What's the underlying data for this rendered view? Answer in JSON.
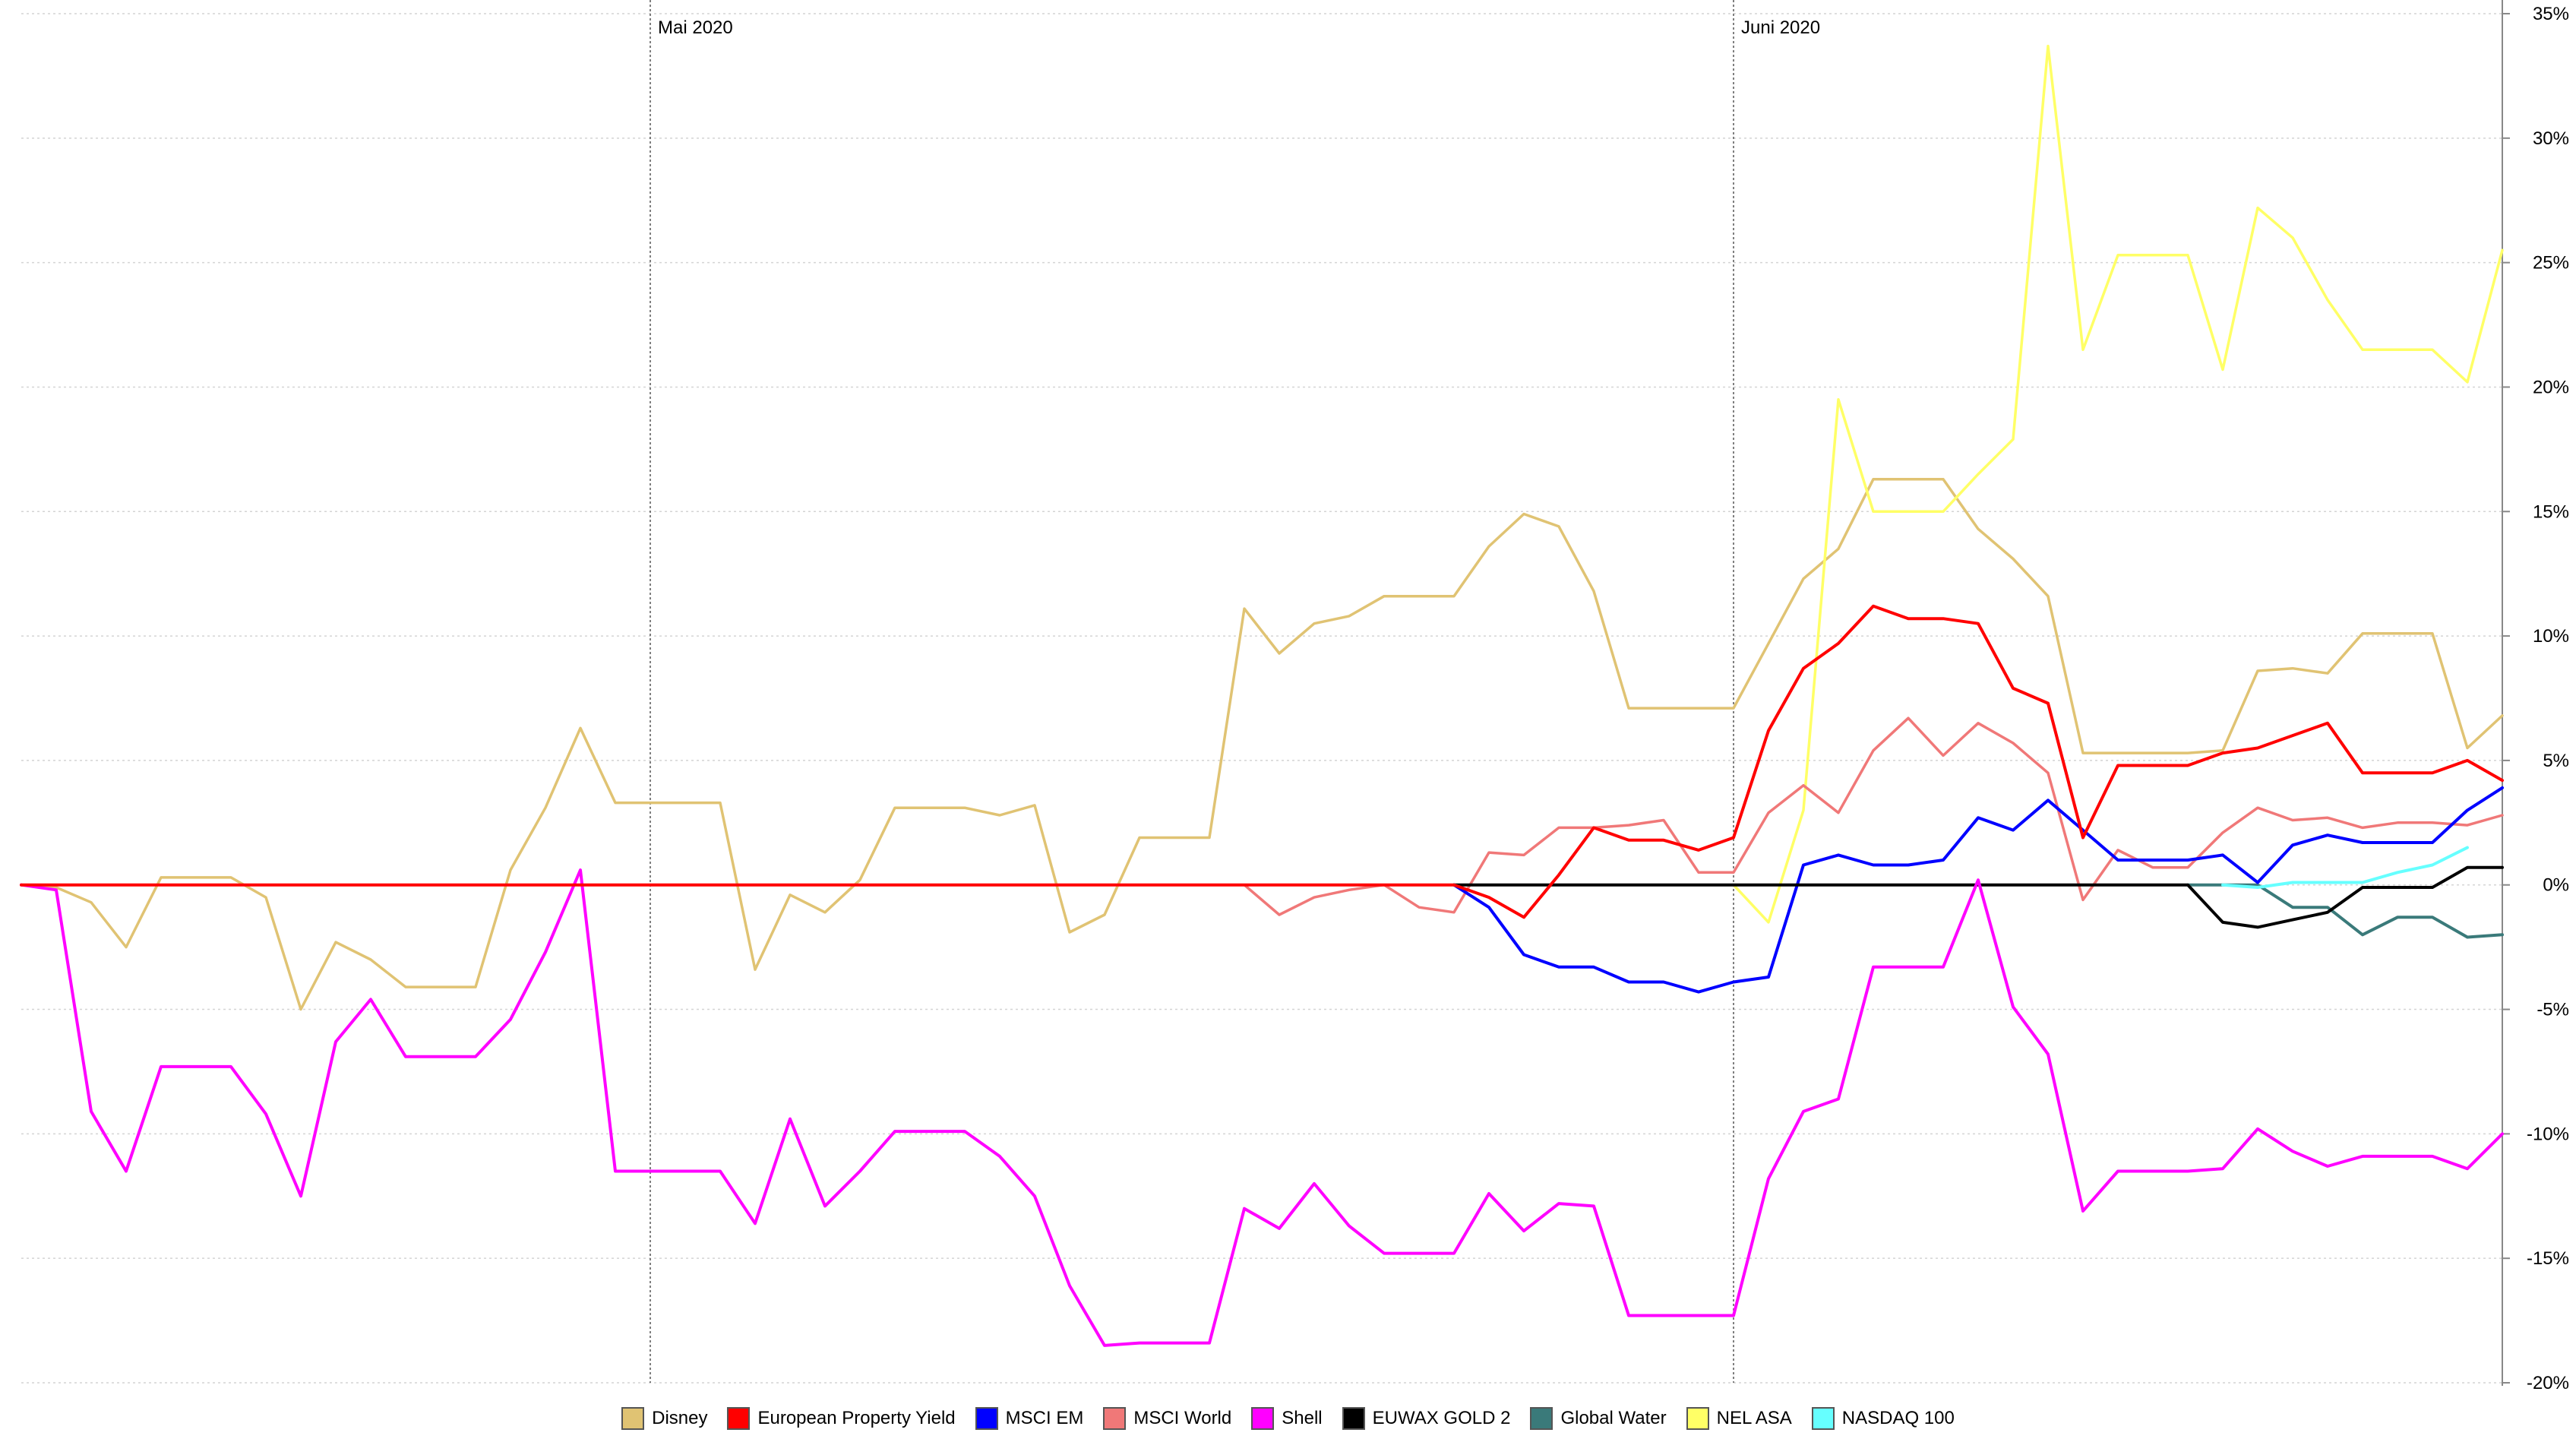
{
  "chart_data": {
    "type": "line",
    "ylim": [
      -20,
      35
    ],
    "y_ticks": [
      "35%",
      "30%",
      "25%",
      "20%",
      "15%",
      "10%",
      "5%",
      "0%",
      "-5%",
      "-10%",
      "-15%",
      "-20%"
    ],
    "y_tick_values": [
      35,
      30,
      25,
      20,
      15,
      10,
      5,
      0,
      -5,
      -10,
      -15,
      -20
    ],
    "y_axis_position": "right",
    "grid": true,
    "legend_position": "bottom",
    "x_count": 72,
    "month_markers": [
      {
        "label": "Mai 2020",
        "index": 18
      },
      {
        "label": "Juni 2020",
        "index": 49
      }
    ],
    "series": [
      {
        "name": "Disney",
        "color": "#e0c373",
        "start_index": 0,
        "values": [
          0,
          -0.1,
          -0.7,
          -2.5,
          0.3,
          0.3,
          0.3,
          -0.5,
          -5,
          -2.3,
          -3,
          -4.1,
          -4.1,
          -4.1,
          0.6,
          3.1,
          6.3,
          3.3,
          3.3,
          3.3,
          3.3,
          -3.4,
          -0.4,
          -1.1,
          0.2,
          3.1,
          3.1,
          3.1,
          2.8,
          3.2,
          -1.9,
          -1.2,
          1.9,
          1.9,
          1.9,
          11.1,
          9.3,
          10.5,
          10.8,
          11.6,
          11.6,
          11.6,
          13.6,
          14.9,
          14.4,
          11.8,
          7.1,
          7.1,
          7.1,
          7.1,
          9.7,
          12.3,
          13.5,
          16.3,
          16.3,
          16.3,
          14.3,
          13.1,
          11.6,
          5.3,
          5.3,
          5.3,
          5.3,
          5.4,
          8.6,
          8.7,
          8.5,
          10.1,
          10.1,
          10.1,
          5.5,
          6.8
        ]
      },
      {
        "name": "European Property Yield",
        "color": "#ff0000",
        "start_index": 0,
        "values": [
          0,
          0,
          0,
          0,
          0,
          0,
          0,
          0,
          0,
          0,
          0,
          0,
          0,
          0,
          0,
          0,
          0,
          0,
          0,
          0,
          0,
          0,
          0,
          0,
          0,
          0,
          0,
          0,
          0,
          0,
          0,
          0,
          0,
          0,
          0,
          0,
          0,
          0,
          0,
          0,
          0,
          0,
          -0.5,
          -1.3,
          0.4,
          2.3,
          1.8,
          1.8,
          1.4,
          1.9,
          6.2,
          8.7,
          9.7,
          11.2,
          10.7,
          10.7,
          10.5,
          7.9,
          7.3,
          1.9,
          4.8,
          4.8,
          4.8,
          5.3,
          5.5,
          6,
          6.5,
          4.5,
          4.5,
          4.5,
          5,
          4.2
        ]
      },
      {
        "name": "MSCI EM",
        "color": "#0000ff",
        "start_index": 41,
        "values": [
          0,
          -0.9,
          -2.8,
          -3.3,
          -3.3,
          -3.9,
          -3.9,
          -4.3,
          -3.9,
          -3.7,
          0.8,
          1.2,
          0.8,
          0.8,
          1,
          2.7,
          2.2,
          3.4,
          2.2,
          1,
          1,
          1,
          1.2,
          0.1,
          1.6,
          2,
          1.7,
          1.7,
          1.7,
          3,
          3.9
        ]
      },
      {
        "name": "MSCI World",
        "color": "#f07878",
        "start_index": 0,
        "values": [
          0,
          0,
          0,
          0,
          0,
          0,
          0,
          0,
          0,
          0,
          0,
          0,
          0,
          0,
          0,
          0,
          0,
          0,
          0,
          0,
          0,
          0,
          0,
          0,
          0,
          0,
          0,
          0,
          0,
          0,
          0,
          0,
          0,
          0,
          0,
          0,
          -1.2,
          -0.5,
          -0.2,
          0,
          -0.9,
          -1.1,
          1.3,
          1.2,
          2.3,
          2.3,
          2.4,
          2.6,
          0.5,
          0.5,
          2.9,
          4,
          2.9,
          5.4,
          6.7,
          5.2,
          6.5,
          5.7,
          4.5,
          -0.6,
          1.4,
          0.7,
          0.7,
          2.1,
          3.1,
          2.6,
          2.7,
          2.3,
          2.5,
          2.5,
          2.4,
          2.8
        ]
      },
      {
        "name": "Shell",
        "color": "#ff00ff",
        "start_index": 0,
        "values": [
          0,
          -0.2,
          -9.1,
          -11.5,
          -7.3,
          -7.3,
          -7.3,
          -9.2,
          -12.5,
          -6.3,
          -4.6,
          -6.9,
          -6.9,
          -6.9,
          -5.4,
          -2.7,
          0.6,
          -11.5,
          -11.5,
          -11.5,
          -11.5,
          -13.6,
          -9.4,
          -12.9,
          -11.5,
          -9.9,
          -9.9,
          -9.9,
          -10.9,
          -12.5,
          -16.1,
          -18.5,
          -18.4,
          -18.4,
          -18.4,
          -13,
          -13.8,
          -12,
          -13.7,
          -14.8,
          -14.8,
          -14.8,
          -12.4,
          -13.9,
          -12.8,
          -12.9,
          -17.3,
          -17.3,
          -17.3,
          -17.3,
          -11.8,
          -9.1,
          -8.6,
          -3.3,
          -3.3,
          -3.3,
          0.2,
          -4.9,
          -6.8,
          -13.1,
          -11.5,
          -11.5,
          -11.5,
          -11.4,
          -9.8,
          -10.7,
          -11.3,
          -10.9,
          -10.9,
          -10.9,
          -11.4,
          -10
        ]
      },
      {
        "name": "EUWAX GOLD 2",
        "color": "#000000",
        "start_index": 41,
        "values": [
          0,
          0,
          0,
          0,
          0,
          0,
          0,
          0,
          0,
          0,
          0,
          0,
          0,
          0,
          0,
          0,
          0,
          0,
          0,
          0,
          0,
          0,
          -1.5,
          -1.7,
          -1.4,
          -1.1,
          -0.1,
          -0.1,
          -0.1,
          0.7,
          0.7
        ]
      },
      {
        "name": "Global Water",
        "color": "#3a7a7a",
        "start_index": 62,
        "values": [
          0,
          0,
          0,
          -0.9,
          -0.9,
          -2,
          -1.3,
          -1.3,
          -2.1,
          -2
        ]
      },
      {
        "name": "NEL ASA",
        "color": "#ffff66",
        "start_index": 49,
        "values": [
          0,
          -1.5,
          3,
          19.5,
          15,
          15,
          15,
          16.5,
          17.9,
          33.7,
          21.5,
          25.3,
          25.3,
          25.3,
          20.7,
          27.2,
          26,
          23.5,
          21.5,
          21.5,
          21.5,
          20.2,
          25.5
        ]
      },
      {
        "name": "NASDAQ 100",
        "color": "#66ffff",
        "start_index": 63,
        "values": [
          0,
          -0.1,
          0.1,
          0.1,
          0.1,
          0.5,
          0.8,
          1.5
        ]
      }
    ]
  }
}
